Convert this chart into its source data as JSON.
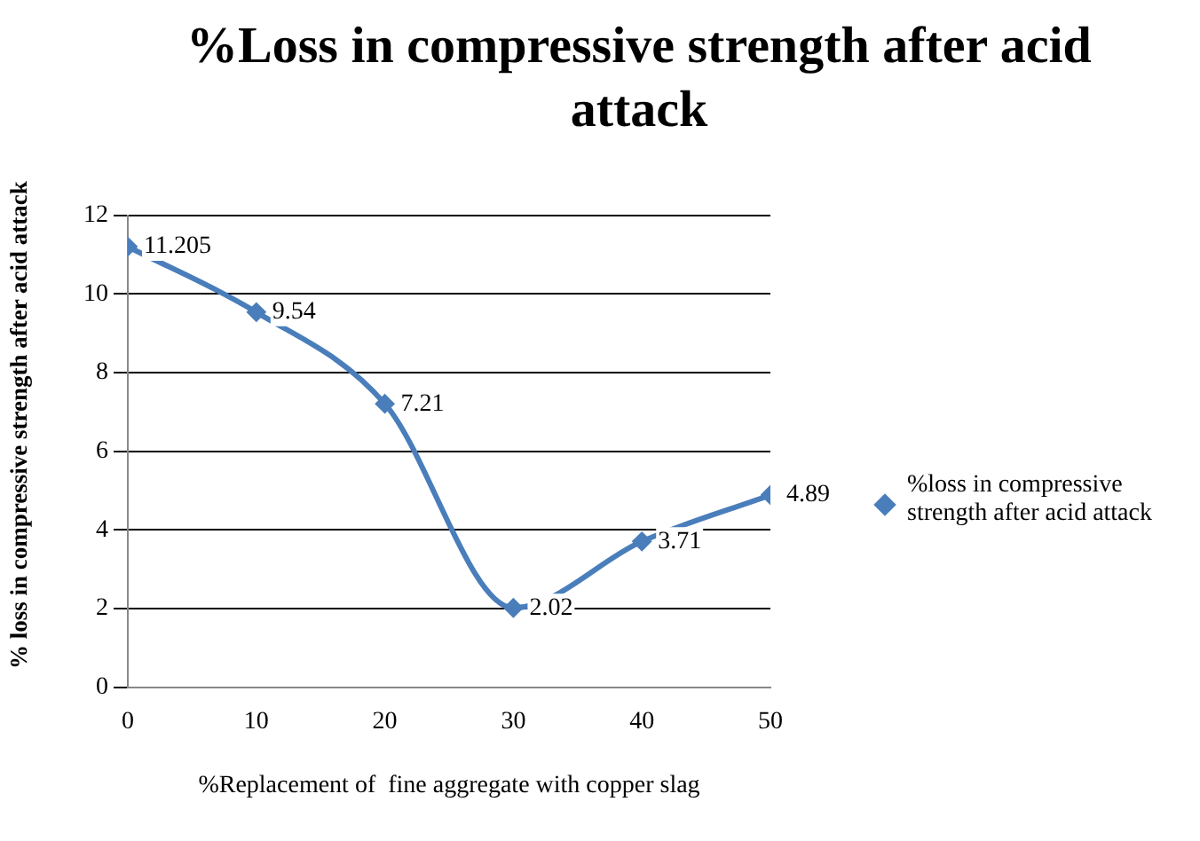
{
  "chart_data": {
    "type": "line",
    "title": "%Loss in compressive strength after acid attack",
    "xlabel": "%Replacement of  fine aggregate with copper slag",
    "ylabel": "% loss in compressive strength after acid attack",
    "x": [
      0,
      10,
      20,
      30,
      40,
      50
    ],
    "series": [
      {
        "name": "%loss in compressive strength after acid attack",
        "color": "#4a7ebb",
        "values": [
          11.205,
          9.54,
          7.21,
          2.02,
          3.71,
          4.89
        ]
      }
    ],
    "xlim": [
      0,
      50
    ],
    "xticks": [
      0,
      10,
      20,
      30,
      40,
      50
    ],
    "ylim": [
      0,
      12
    ],
    "yticks": [
      0,
      2,
      4,
      6,
      8,
      10,
      12
    ],
    "grid": "y",
    "legend": "right",
    "marker": "diamond",
    "line_style": "solid",
    "data_labels": true
  }
}
